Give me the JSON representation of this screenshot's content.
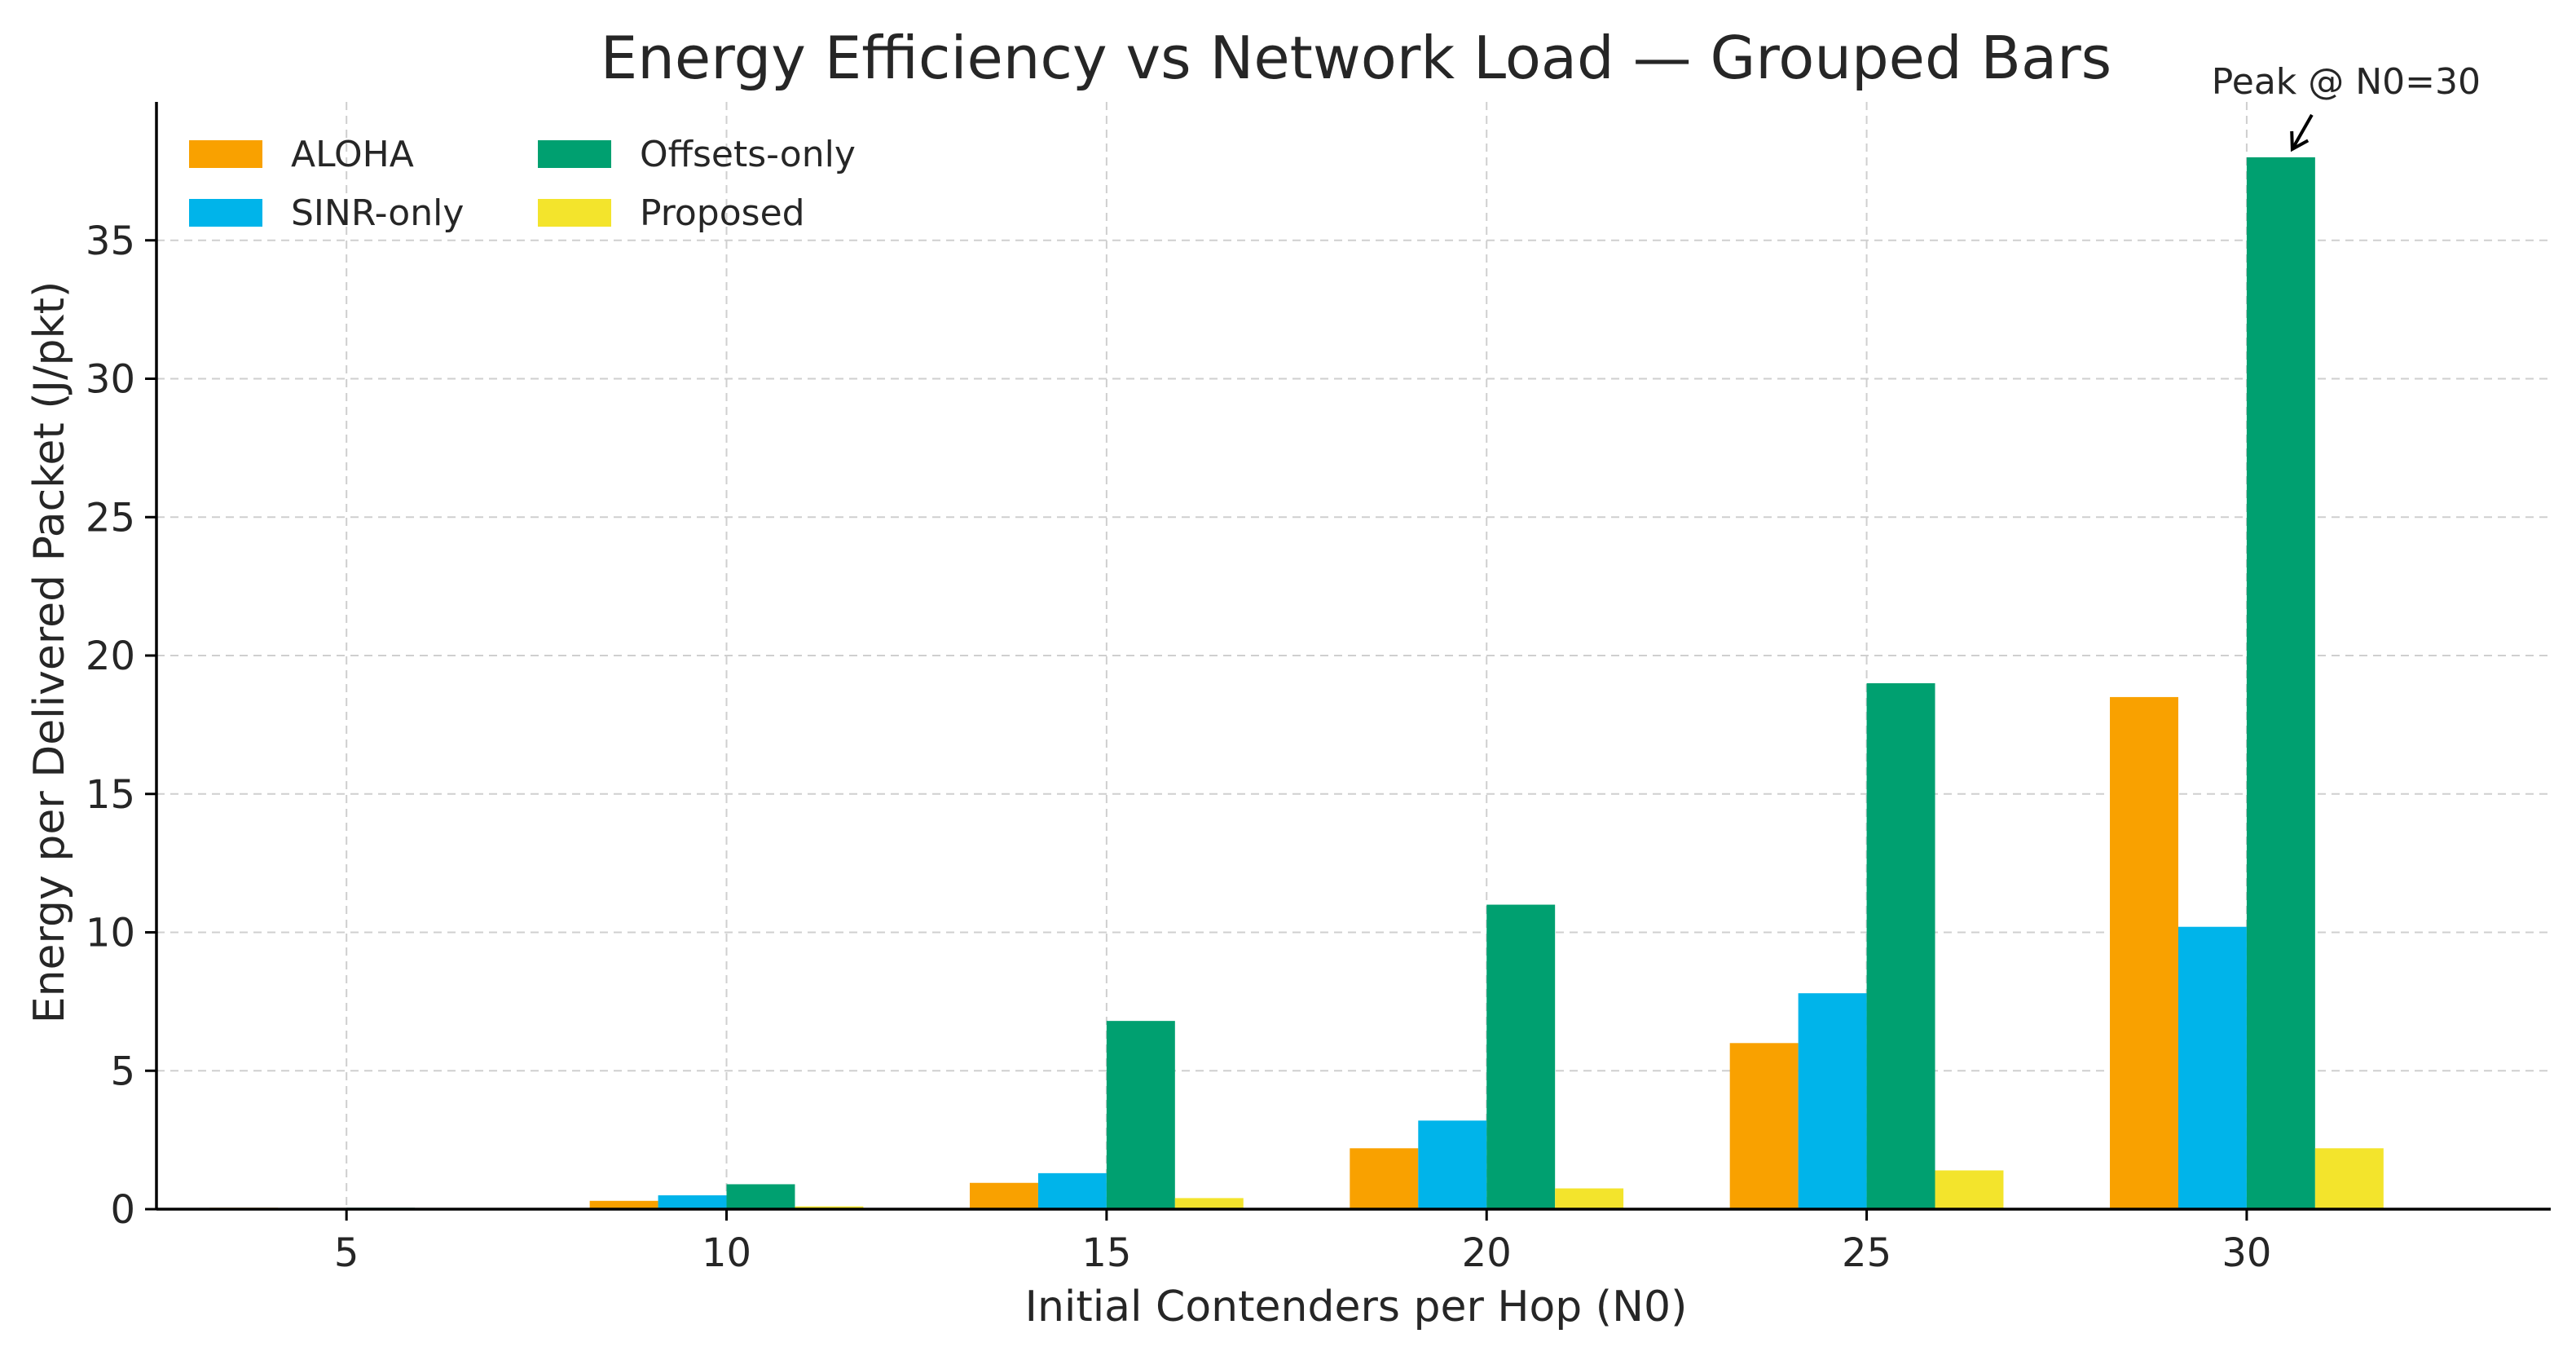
{
  "chart_data": {
    "type": "bar",
    "title": "Energy Efficiency vs Network Load — Grouped Bars",
    "xlabel": "Initial Contenders per Hop (N0)",
    "ylabel": "Energy per Delivered Packet (J/pkt)",
    "categories": [
      "5",
      "10",
      "15",
      "20",
      "25",
      "30"
    ],
    "xticks": [
      "5",
      "10",
      "15",
      "20",
      "25",
      "30"
    ],
    "yticks": [
      "0",
      "5",
      "10",
      "15",
      "20",
      "25",
      "30",
      "35"
    ],
    "ylim": [
      0,
      40
    ],
    "grid": true,
    "legend": {
      "placement": "top-left",
      "columns": 2
    },
    "series": [
      {
        "name": "ALOHA",
        "color": "#F9A100",
        "values": [
          0.05,
          0.3,
          0.95,
          2.2,
          6.0,
          18.5
        ]
      },
      {
        "name": "SINR-only",
        "color": "#00B4EA",
        "values": [
          0.02,
          0.5,
          1.3,
          3.2,
          7.8,
          10.2
        ]
      },
      {
        "name": "Offsets-only",
        "color": "#00A070",
        "values": [
          0.05,
          0.9,
          6.8,
          11.0,
          19.0,
          38.0
        ]
      },
      {
        "name": "Proposed",
        "color": "#F3E42C",
        "values": [
          0.01,
          0.1,
          0.4,
          0.75,
          1.4,
          2.2
        ]
      }
    ],
    "annotation": {
      "text": "Peak @ N0=30",
      "category": "30",
      "series": "Offsets-only",
      "value": 38.0
    }
  }
}
